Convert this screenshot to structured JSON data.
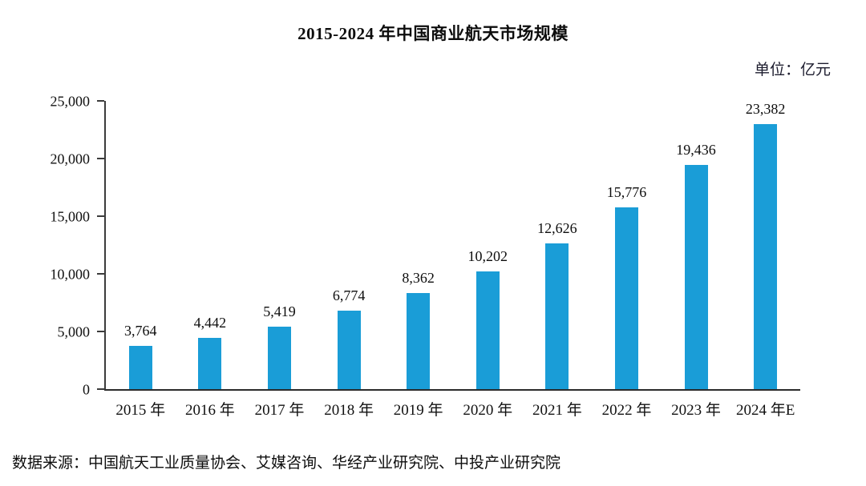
{
  "title": "2015-2024 年中国商业航天市场规模",
  "unit_label": "单位：亿元",
  "source": "数据来源：中国航天工业质量协会、艾媒咨询、华经产业研究院、中投产业研究院",
  "colors": {
    "bar": "#1a9dd7",
    "axis": "#3c3c3c",
    "text": "#111111"
  },
  "chart_data": {
    "type": "bar",
    "title": "2015-2024 年中国商业航天市场规模",
    "unit": "亿元",
    "categories": [
      "2015 年",
      "2016 年",
      "2017 年",
      "2018 年",
      "2019 年",
      "2020 年",
      "2021 年",
      "2022 年",
      "2023 年",
      "2024 年E"
    ],
    "values": [
      3764,
      4442,
      5419,
      6774,
      8362,
      10202,
      12626,
      15776,
      19436,
      23382
    ],
    "value_labels": [
      "3,764",
      "4,442",
      "5,419",
      "6,774",
      "8,362",
      "10,202",
      "12,626",
      "15,776",
      "19,436",
      "23,382"
    ],
    "xlabel": "",
    "ylabel": "亿元",
    "ylim": [
      0,
      25000
    ],
    "y_ticks": [
      0,
      5000,
      10000,
      15000,
      20000,
      25000
    ],
    "y_tick_labels": [
      "0",
      "5,000",
      "10,000",
      "15,000",
      "20,000",
      "25,000"
    ],
    "grid": false,
    "legend": "none",
    "data_labels": true
  }
}
